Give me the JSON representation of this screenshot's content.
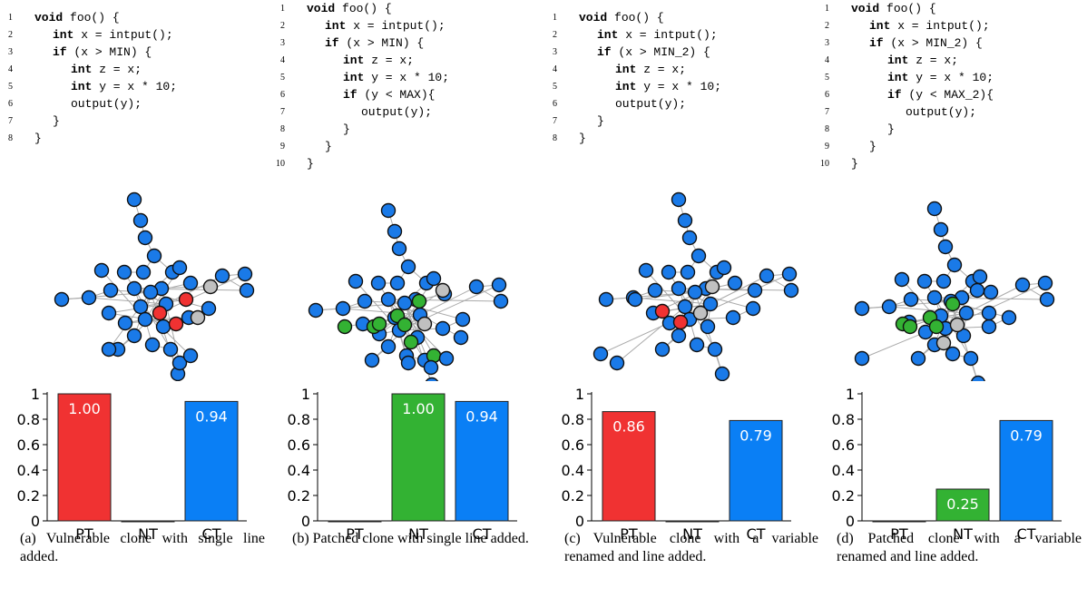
{
  "colors": {
    "pt": "#f03232",
    "nt": "#33b233",
    "ct": "#0a7ff5",
    "node_blue": "#1a7ae8",
    "node_gray": "#c0c0c0"
  },
  "panels": [
    {
      "code": [
        {
          "n": "1",
          "ind": 0,
          "kw": "void",
          "rest": " foo() {"
        },
        {
          "n": "2",
          "ind": 1,
          "kw": "int",
          "rest": " x = intput();"
        },
        {
          "n": "3",
          "ind": 1,
          "kw": "if",
          "rest": " (x > MIN) {"
        },
        {
          "n": "4",
          "ind": 2,
          "kw": "int",
          "rest": " z = x;"
        },
        {
          "n": "5",
          "ind": 2,
          "kw": "int",
          "rest": " y = x * 10;"
        },
        {
          "n": "6",
          "ind": 2,
          "kw": "",
          "rest": "output(y);"
        },
        {
          "n": "7",
          "ind": 1,
          "kw": "",
          "rest": "}"
        },
        {
          "n": "8",
          "ind": 0,
          "kw": "",
          "rest": "}"
        }
      ],
      "caption": "(a) Vulnerable clone with single line added."
    },
    {
      "code": [
        {
          "n": "1",
          "ind": 0,
          "kw": "void",
          "rest": " foo() {"
        },
        {
          "n": "2",
          "ind": 1,
          "kw": "int",
          "rest": " x = intput();"
        },
        {
          "n": "3",
          "ind": 1,
          "kw": "if",
          "rest": " (x > MIN) {"
        },
        {
          "n": "4",
          "ind": 2,
          "kw": "int",
          "rest": " z = x;"
        },
        {
          "n": "5",
          "ind": 2,
          "kw": "int",
          "rest": " y = x * 10;"
        },
        {
          "n": "6",
          "ind": 2,
          "kw": "if",
          "rest": " (y < MAX){"
        },
        {
          "n": "7",
          "ind": 3,
          "kw": "",
          "rest": "output(y);"
        },
        {
          "n": "8",
          "ind": 2,
          "kw": "",
          "rest": "}"
        },
        {
          "n": "9",
          "ind": 1,
          "kw": "",
          "rest": "}"
        },
        {
          "n": "10",
          "ind": 0,
          "kw": "",
          "rest": "}"
        }
      ],
      "caption": "(b) Patched clone with single line added."
    },
    {
      "code": [
        {
          "n": "1",
          "ind": 0,
          "kw": "void",
          "rest": " foo() {"
        },
        {
          "n": "2",
          "ind": 1,
          "kw": "int",
          "rest": " x = intput();"
        },
        {
          "n": "3",
          "ind": 1,
          "kw": "if",
          "rest": " (x > MIN_2) {"
        },
        {
          "n": "4",
          "ind": 2,
          "kw": "int",
          "rest": " z = x;"
        },
        {
          "n": "5",
          "ind": 2,
          "kw": "int",
          "rest": " y = x * 10;"
        },
        {
          "n": "6",
          "ind": 2,
          "kw": "",
          "rest": "output(y);"
        },
        {
          "n": "7",
          "ind": 1,
          "kw": "",
          "rest": "}"
        },
        {
          "n": "8",
          "ind": 0,
          "kw": "",
          "rest": "}"
        }
      ],
      "caption": "(c) Vulnerable clone with a variable renamed and line added."
    },
    {
      "code": [
        {
          "n": "1",
          "ind": 0,
          "kw": "void",
          "rest": " foo() {"
        },
        {
          "n": "2",
          "ind": 1,
          "kw": "int",
          "rest": " x = intput();"
        },
        {
          "n": "3",
          "ind": 1,
          "kw": "if",
          "rest": " (x > MIN_2) {"
        },
        {
          "n": "4",
          "ind": 2,
          "kw": "int",
          "rest": " z = x;"
        },
        {
          "n": "5",
          "ind": 2,
          "kw": "int",
          "rest": " y = x * 10;"
        },
        {
          "n": "6",
          "ind": 2,
          "kw": "if",
          "rest": " (y < MAX_2){"
        },
        {
          "n": "7",
          "ind": 3,
          "kw": "",
          "rest": "output(y);"
        },
        {
          "n": "8",
          "ind": 2,
          "kw": "",
          "rest": "}"
        },
        {
          "n": "9",
          "ind": 1,
          "kw": "",
          "rest": "}"
        },
        {
          "n": "10",
          "ind": 0,
          "kw": "",
          "rest": "}"
        }
      ],
      "caption": "(d) Patched clone with a variable renamed and line added."
    }
  ],
  "chart_data": [
    {
      "type": "bar",
      "categories": [
        "PT",
        "NT",
        "CT"
      ],
      "values": [
        1.0,
        0,
        0.94
      ],
      "value_labels": [
        "1.00",
        "",
        "0.94"
      ],
      "ylim": [
        0,
        1
      ],
      "yticks": [
        "0",
        "0.2",
        "0.4",
        "0.6",
        "0.8",
        "1"
      ]
    },
    {
      "type": "bar",
      "categories": [
        "PT",
        "NT",
        "CT"
      ],
      "values": [
        0,
        1.0,
        0.94
      ],
      "value_labels": [
        "",
        "1.00",
        "0.94"
      ],
      "ylim": [
        0,
        1
      ],
      "yticks": [
        "0",
        "0.2",
        "0.4",
        "0.6",
        "0.8",
        "1"
      ]
    },
    {
      "type": "bar",
      "categories": [
        "PT",
        "NT",
        "CT"
      ],
      "values": [
        0.86,
        0,
        0.79
      ],
      "value_labels": [
        "0.86",
        "",
        "0.79"
      ],
      "ylim": [
        0,
        1
      ],
      "yticks": [
        "0",
        "0.2",
        "0.4",
        "0.6",
        "0.8",
        "1"
      ]
    },
    {
      "type": "bar",
      "categories": [
        "PT",
        "NT",
        "CT"
      ],
      "values": [
        0,
        0.25,
        0.79
      ],
      "value_labels": [
        "",
        "0.25",
        "0.79"
      ],
      "ylim": [
        0,
        1
      ],
      "yticks": [
        "0",
        "0.2",
        "0.4",
        "0.6",
        "0.8",
        "1"
      ]
    }
  ],
  "graphs": [
    {
      "node_colors": [
        "b",
        "b",
        "b",
        "b",
        "b",
        "b",
        "b",
        "b",
        "b",
        "b",
        "b",
        "b",
        "b",
        "b",
        "b",
        "b",
        "b",
        "b",
        "b",
        "b",
        "b",
        "b",
        "b",
        "b",
        "b",
        "b",
        "b",
        "b",
        "b",
        "b",
        "b",
        "b",
        "r",
        "r",
        "r",
        "g",
        "g",
        "b",
        "b",
        "b"
      ]
    },
    {
      "node_colors": [
        "b",
        "b",
        "b",
        "b",
        "b",
        "b",
        "b",
        "b",
        "b",
        "b",
        "b",
        "b",
        "b",
        "b",
        "b",
        "b",
        "b",
        "b",
        "b",
        "b",
        "b",
        "b",
        "b",
        "b",
        "b",
        "b",
        "b",
        "b",
        "b",
        "b",
        "b",
        "b",
        "gr",
        "gr",
        "gr",
        "gr",
        "gr",
        "gr",
        "gr",
        "gr",
        "g",
        "g",
        "b",
        "b",
        "b",
        "b"
      ]
    },
    {
      "node_colors": [
        "b",
        "b",
        "b",
        "b",
        "b",
        "b",
        "b",
        "b",
        "b",
        "b",
        "b",
        "b",
        "b",
        "b",
        "b",
        "b",
        "b",
        "b",
        "b",
        "b",
        "b",
        "b",
        "b",
        "b",
        "b",
        "b",
        "b",
        "b",
        "b",
        "b",
        "b",
        "b",
        "r",
        "r",
        "g",
        "g",
        "b",
        "b",
        "b",
        "b"
      ]
    },
    {
      "node_colors": [
        "b",
        "b",
        "b",
        "b",
        "b",
        "b",
        "b",
        "b",
        "b",
        "b",
        "b",
        "b",
        "b",
        "b",
        "b",
        "b",
        "b",
        "b",
        "b",
        "b",
        "b",
        "b",
        "b",
        "b",
        "b",
        "b",
        "b",
        "b",
        "b",
        "b",
        "b",
        "b",
        "gr",
        "gr",
        "gr",
        "gr",
        "gr",
        "g",
        "g",
        "b",
        "b",
        "b"
      ]
    }
  ]
}
